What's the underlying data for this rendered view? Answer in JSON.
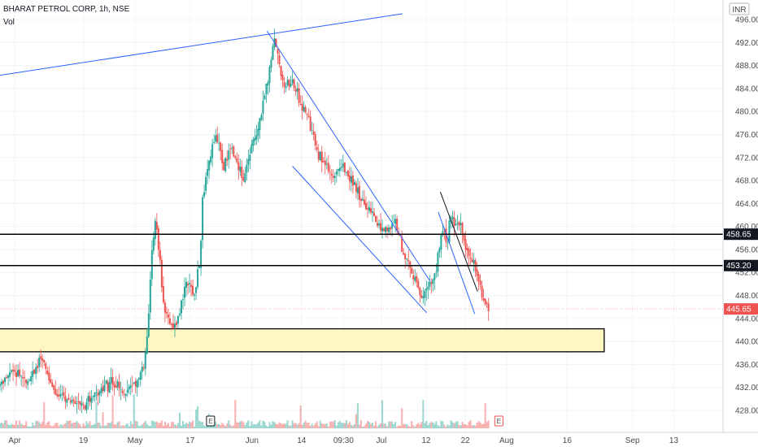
{
  "header": {
    "symbol": "BHARAT PETROL CORP, 1h, NSE",
    "volume_label": "Vol",
    "currency": "INR"
  },
  "colors": {
    "up": "#26a69a",
    "down": "#ef5350",
    "trendline": "#2962ff",
    "channel_dark": "#5d606b",
    "level_line": "#000000",
    "zone_fill": "#fff7c2",
    "current_price": "#ef5350"
  },
  "chart_data": {
    "type": "candlestick",
    "title": "BHARAT PETROL CORP, 1h, NSE",
    "y_axis": {
      "min": 426,
      "max": 497,
      "ticks": [
        "496.00",
        "492.00",
        "488.00",
        "484.00",
        "480.00",
        "476.00",
        "472.00",
        "468.00",
        "464.00",
        "460.00",
        "456.00",
        "452.00",
        "448.00",
        "444.00",
        "440.00",
        "436.00",
        "432.00",
        "428.00"
      ]
    },
    "x_axis": {
      "ticks": [
        {
          "label": "Apr",
          "t": 0.0
        },
        {
          "label": "19",
          "t": 0.1
        },
        {
          "label": "May",
          "t": 0.175
        },
        {
          "label": "17",
          "t": 0.255
        },
        {
          "label": "Jun",
          "t": 0.345
        },
        {
          "label": "14",
          "t": 0.417
        },
        {
          "label": "09:30",
          "t": 0.478
        },
        {
          "label": "Jul",
          "t": 0.533
        },
        {
          "label": "12",
          "t": 0.598
        },
        {
          "label": "22",
          "t": 0.655
        },
        {
          "label": "Aug",
          "t": 0.715
        },
        {
          "label": "16",
          "t": 0.803
        },
        {
          "label": "Sep",
          "t": 0.898
        },
        {
          "label": "13",
          "t": 0.958
        }
      ]
    },
    "price_path": [
      [
        0.0,
        432.5
      ],
      [
        0.02,
        435
      ],
      [
        0.04,
        433
      ],
      [
        0.06,
        437
      ],
      [
        0.08,
        431
      ],
      [
        0.1,
        430
      ],
      [
        0.12,
        429
      ],
      [
        0.14,
        431
      ],
      [
        0.16,
        433
      ],
      [
        0.18,
        431
      ],
      [
        0.2,
        433
      ],
      [
        0.21,
        436
      ],
      [
        0.215,
        442
      ],
      [
        0.22,
        454
      ],
      [
        0.225,
        462
      ],
      [
        0.23,
        457
      ],
      [
        0.235,
        450
      ],
      [
        0.24,
        446
      ],
      [
        0.25,
        442
      ],
      [
        0.26,
        444
      ],
      [
        0.27,
        451
      ],
      [
        0.28,
        448
      ],
      [
        0.29,
        453
      ],
      [
        0.295,
        466
      ],
      [
        0.305,
        472
      ],
      [
        0.315,
        476
      ],
      [
        0.325,
        470
      ],
      [
        0.335,
        474
      ],
      [
        0.345,
        471
      ],
      [
        0.355,
        468
      ],
      [
        0.365,
        474
      ],
      [
        0.375,
        477
      ],
      [
        0.385,
        483
      ],
      [
        0.395,
        490
      ],
      [
        0.4,
        493
      ],
      [
        0.405,
        488
      ],
      [
        0.415,
        484
      ],
      [
        0.425,
        485
      ],
      [
        0.435,
        482
      ],
      [
        0.445,
        480
      ],
      [
        0.455,
        476
      ],
      [
        0.465,
        472
      ],
      [
        0.475,
        470
      ],
      [
        0.485,
        468
      ],
      [
        0.495,
        471
      ],
      [
        0.505,
        469
      ],
      [
        0.515,
        467
      ],
      [
        0.525,
        465
      ],
      [
        0.535,
        463
      ],
      [
        0.545,
        461
      ],
      [
        0.555,
        460
      ],
      [
        0.565,
        459
      ],
      [
        0.575,
        461
      ],
      [
        0.585,
        456
      ],
      [
        0.595,
        453
      ],
      [
        0.605,
        450
      ],
      [
        0.612,
        447
      ],
      [
        0.62,
        449
      ],
      [
        0.63,
        451
      ],
      [
        0.64,
        457
      ],
      [
        0.645,
        459
      ],
      [
        0.65,
        457
      ],
      [
        0.655,
        462
      ],
      [
        0.66,
        461
      ],
      [
        0.67,
        460
      ],
      [
        0.675,
        457
      ],
      [
        0.685,
        454
      ],
      [
        0.69,
        453
      ],
      [
        0.695,
        451
      ],
      [
        0.7,
        449
      ],
      [
        0.705,
        447
      ],
      [
        0.71,
        446
      ]
    ],
    "current_price": 445.65,
    "levels": [
      {
        "type": "horizontal",
        "price": 458.65,
        "label": "458.65"
      },
      {
        "type": "horizontal",
        "price": 453.2,
        "label": "453.20"
      }
    ],
    "zone": {
      "top": 442.2,
      "bottom": 438.2,
      "t_end": 0.845
    },
    "trendlines": [
      {
        "t1": 0.0,
        "p1": 486.3,
        "t2": 0.585,
        "p2": 497
      },
      {
        "t1": 0.388,
        "p1": 494.0,
        "t2": 0.625,
        "p2": 450.5
      },
      {
        "t1": 0.425,
        "p1": 470.5,
        "t2": 0.62,
        "p2": 445.0
      },
      {
        "t1": 0.64,
        "p1": 466.0,
        "t2": 0.694,
        "p2": 448.7
      },
      {
        "t1": 0.637,
        "p1": 462.5,
        "t2": 0.69,
        "p2": 444.8
      }
    ],
    "markers": [
      {
        "label": "E",
        "t": 0.306
      },
      {
        "label": "E",
        "t": 0.725
      }
    ]
  }
}
